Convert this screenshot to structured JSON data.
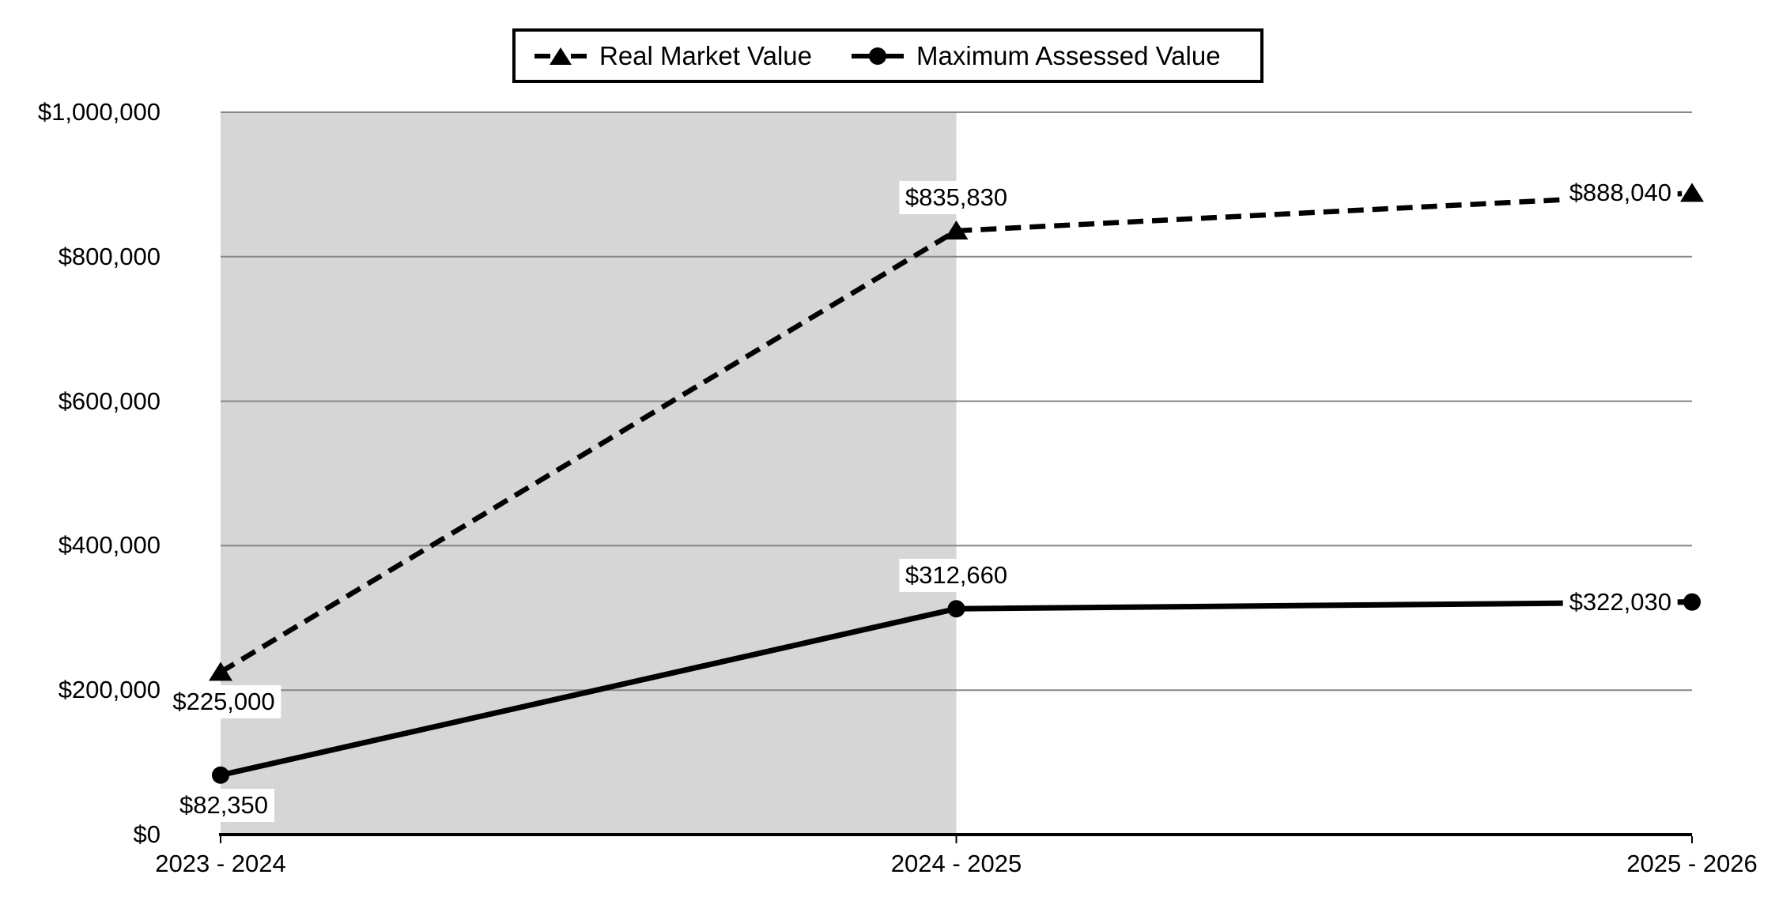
{
  "chart_data": {
    "type": "line",
    "title": "",
    "categories": [
      "2023 - 2024",
      "2024 - 2025",
      "2025 - 2026"
    ],
    "series": [
      {
        "name": "Real Market Value",
        "values": [
          225000,
          835830,
          888040
        ],
        "point_labels": [
          "$225,000",
          "$835,830",
          "$888,040"
        ],
        "line_style": "dashed",
        "marker": "triangle",
        "color": "#000000"
      },
      {
        "name": "Maximum Assessed Value",
        "values": [
          82350,
          312660,
          322030
        ],
        "point_labels": [
          "$82,350",
          "$312,660",
          "$322,030"
        ],
        "line_style": "solid",
        "marker": "circle",
        "color": "#000000"
      }
    ],
    "y_axis": {
      "min": 0,
      "max": 1000000,
      "ticks": [
        0,
        200000,
        400000,
        600000,
        800000,
        1000000
      ],
      "tick_labels": [
        "$0",
        "$200,000",
        "$400,000",
        "$600,000",
        "$800,000",
        "$1,000,000"
      ]
    },
    "legend_position": "top",
    "grid": "horizontal",
    "shaded_region": {
      "from_category": "2023 - 2024",
      "to_category": "2024 - 2025",
      "color": "#d6d6d6"
    },
    "colors": {
      "series": "#000000",
      "gridline": "#878787",
      "axis": "#000000",
      "background": "#ffffff",
      "label_background": "#ffffff"
    }
  }
}
